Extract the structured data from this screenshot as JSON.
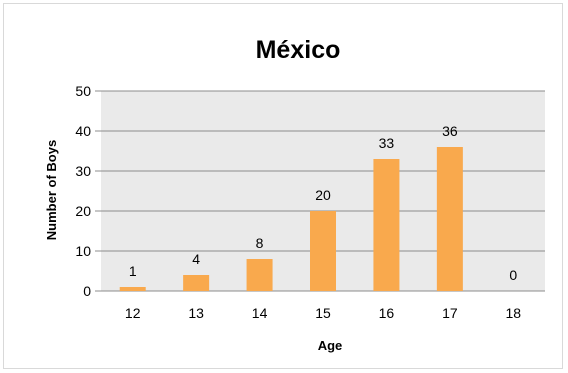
{
  "chart_data": {
    "type": "bar",
    "title": "México",
    "xlabel": "Age",
    "ylabel": "Number of Boys",
    "categories": [
      "12",
      "13",
      "14",
      "15",
      "16",
      "17",
      "18"
    ],
    "values": [
      1,
      4,
      8,
      20,
      33,
      36,
      0
    ],
    "data_labels": [
      "1",
      "4",
      "8",
      "20",
      "33",
      "36",
      "0"
    ],
    "ylim": [
      0,
      50
    ],
    "yticks": [
      "0",
      "10",
      "20",
      "30",
      "40",
      "50"
    ],
    "grid": true,
    "legend": "none",
    "colors": {
      "bar": "#F9A94D",
      "plot_background": "#EAEAEA",
      "gridline": "#8C8C8C"
    }
  }
}
